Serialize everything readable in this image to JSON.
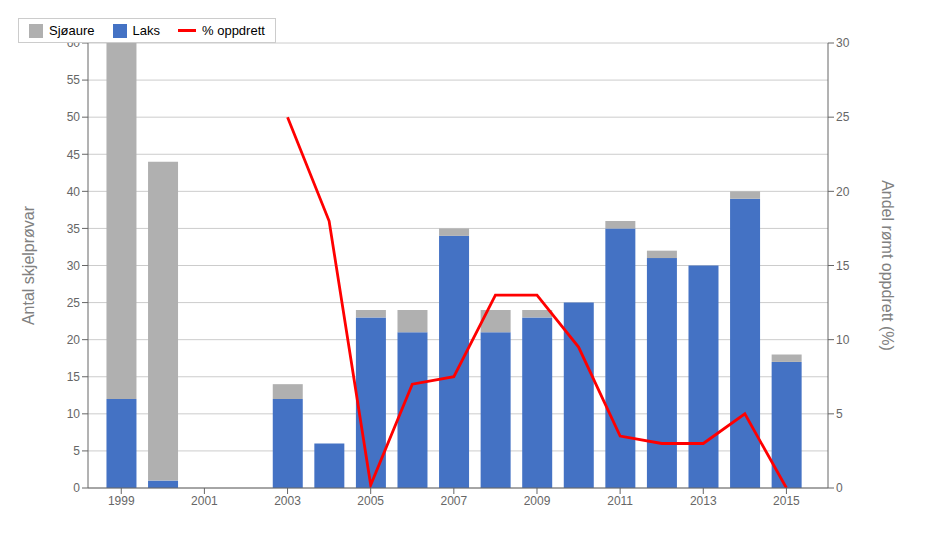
{
  "chart_data": {
    "type": "bar",
    "stacked": true,
    "x": [
      1999,
      2000,
      2003,
      2004,
      2005,
      2006,
      2007,
      2008,
      2009,
      2010,
      2011,
      2012,
      2013,
      2014,
      2015
    ],
    "xlim": [
      1998.2,
      2016.0
    ],
    "xticks": [
      1999,
      2001,
      2003,
      2005,
      2007,
      2009,
      2011,
      2013,
      2015
    ],
    "ylim": [
      0,
      60
    ],
    "yticks": [
      0,
      5,
      10,
      15,
      20,
      25,
      30,
      35,
      40,
      45,
      50,
      55,
      60
    ],
    "y2lim": [
      0,
      30
    ],
    "y2ticks": [
      0,
      5,
      10,
      15,
      20,
      25,
      30
    ],
    "ylabel": "Antal skjelprøvar",
    "y2label": "Andel rømt oppdrett (%)",
    "grid": true,
    "legend": "upper right",
    "series": [
      {
        "name": "Laks",
        "color": "#4472c4",
        "values": [
          12,
          1,
          12,
          6,
          23,
          21,
          34,
          21,
          23,
          25,
          35,
          31,
          30,
          39,
          17
        ]
      },
      {
        "name": "Sjøaure",
        "color": "#b0b0b0",
        "values": [
          48,
          43,
          2,
          0,
          1,
          3,
          1,
          3,
          1,
          0,
          1,
          1,
          0,
          1,
          1
        ]
      },
      {
        "name": "% oppdrett",
        "type": "line",
        "axis": "y2",
        "color": "#ff0000",
        "values": [
          null,
          null,
          25,
          18,
          0.2,
          7,
          7.5,
          13,
          13,
          9.5,
          3.5,
          3,
          3,
          5,
          0
        ]
      }
    ]
  }
}
